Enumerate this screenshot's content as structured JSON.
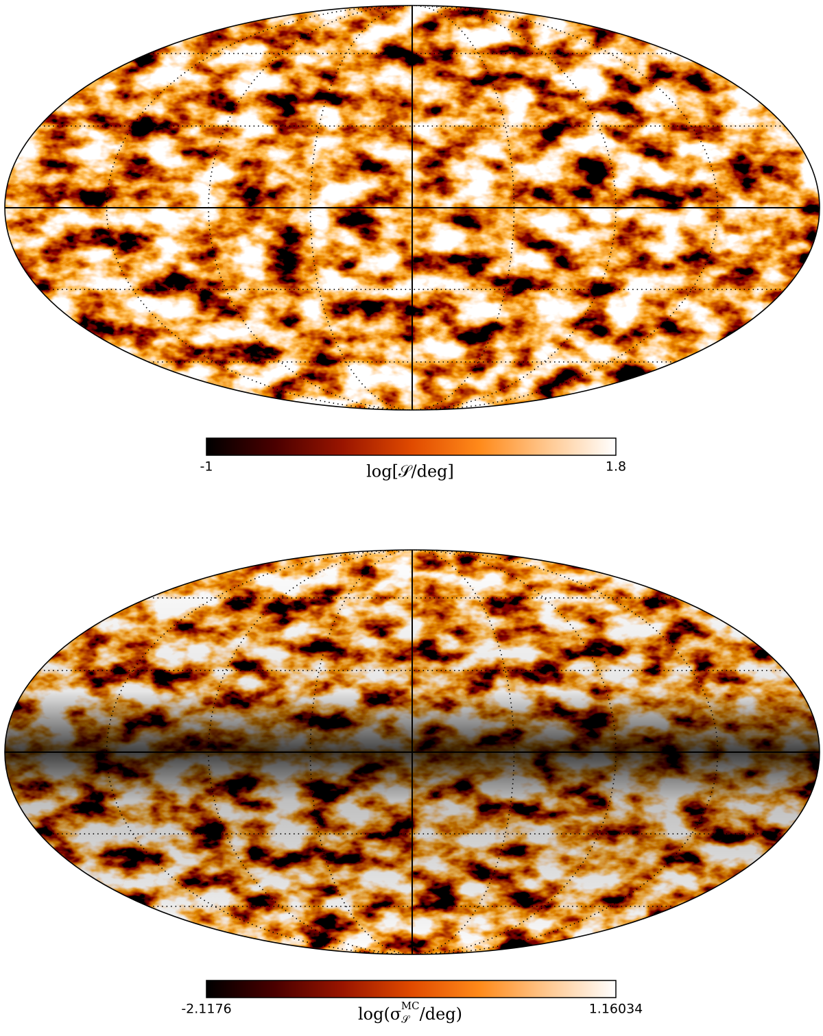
{
  "chart_data": [
    {
      "type": "heatmap",
      "projection": "mollweide",
      "colormap": [
        "#000000",
        "#4a0000",
        "#9a1500",
        "#e04a00",
        "#ff8a1a",
        "#ffc890",
        "#ffffff"
      ],
      "xlim": [
        -1,
        1.8
      ],
      "xticks": [
        -1,
        1.8
      ],
      "xlabel": "log[𝒮/deg]"
    },
    {
      "type": "heatmap",
      "projection": "mollweide",
      "colormap": [
        "#000000",
        "#4a0000",
        "#9a1500",
        "#e04a00",
        "#ff8a1a",
        "#ffc890",
        "#ffffff"
      ],
      "xlim": [
        -2.1176,
        1.16034
      ],
      "xticks": [
        -2.1176,
        1.16034
      ],
      "xlabel": {
        "base": "log(σ",
        "sub": "𝒮",
        "sup": "MC",
        "rest": "/deg)"
      }
    }
  ]
}
